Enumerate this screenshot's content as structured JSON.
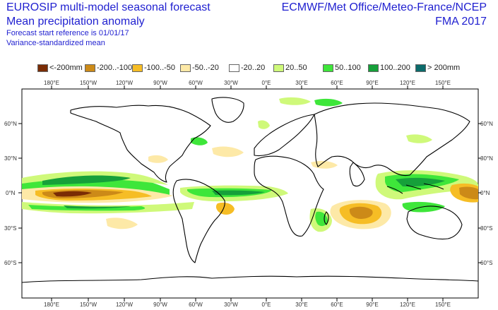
{
  "header": {
    "title_line1": "EUROSIP multi-model seasonal forecast",
    "title_line2": "Mean precipitation anomaly",
    "start_reference": "Forecast start reference is 01/01/17",
    "note": "Variance-standardized mean",
    "centres": "ECMWF/Met Office/Meteo-France/NCEP",
    "period": "FMA 2017"
  },
  "legend": [
    {
      "label": "<-200mm",
      "color": "#7a2c05"
    },
    {
      "label": "-200..-100",
      "color": "#cc8a18"
    },
    {
      "label": "-100..-50",
      "color": "#f6bd25"
    },
    {
      "label": "-50..-20",
      "color": "#fde9a7"
    },
    {
      "label": "-20..20",
      "color": "#ffffff"
    },
    {
      "label": "20..50",
      "color": "#cff97a"
    },
    {
      "label": "50..100",
      "color": "#3ee63a"
    },
    {
      "label": "100..200",
      "color": "#16a03a"
    },
    {
      "label": "> 200mm",
      "color": "#0c6b6b"
    }
  ],
  "axes": {
    "lon_labels": [
      "180°E",
      "150°W",
      "120°W",
      "90°W",
      "60°W",
      "30°W",
      "0°E",
      "30°E",
      "60°E",
      "90°E",
      "120°E",
      "150°E"
    ],
    "lat_labels_left": [
      "60°N",
      "30°N",
      "0°N",
      "30°S",
      "60°S"
    ],
    "lat_labels_right": [
      "60°N",
      "30°N",
      "0°N",
      "30°S",
      "60°S"
    ]
  }
}
